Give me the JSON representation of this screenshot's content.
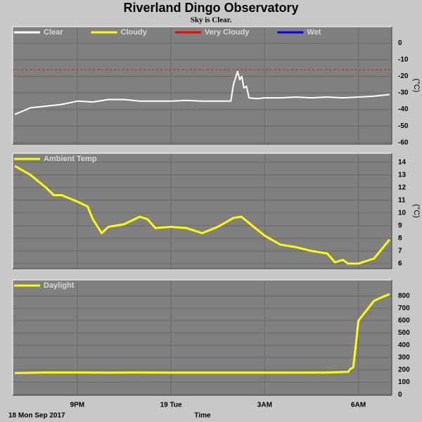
{
  "title": "Riverland Dingo Observatory",
  "subtitle": "Sky is Clear.",
  "xlabel": "Time",
  "date_label": "18 Mon Sep 2017",
  "xlim": [
    "2017-09-18T18:56",
    "2017-09-19T07:04"
  ],
  "xticks": [
    {
      "value": "2017-09-18T21:00",
      "label": "9PM"
    },
    {
      "value": "2017-09-19T00:00",
      "label": "19 Tue"
    },
    {
      "value": "2017-09-19T03:00",
      "label": "3AM"
    },
    {
      "value": "2017-09-19T06:00",
      "label": "6AM"
    }
  ],
  "chart_data": [
    {
      "type": "line",
      "ylabel": "(°C)",
      "ylim": [
        -61,
        10
      ],
      "yticks": [
        0,
        -10,
        -20,
        -30,
        -40,
        -50,
        -60
      ],
      "grid": true,
      "threshold": {
        "value": -16,
        "color": "#ff0000",
        "style": "dashed"
      },
      "series": [
        {
          "name": "Clear",
          "color": "#ffffff",
          "x": [
            "2017-09-18T19:00",
            "2017-09-18T19:30",
            "2017-09-18T20:00",
            "2017-09-18T20:30",
            "2017-09-18T21:00",
            "2017-09-18T21:30",
            "2017-09-18T22:00",
            "2017-09-18T22:30",
            "2017-09-18T23:00",
            "2017-09-18T23:30",
            "2017-09-19T00:00",
            "2017-09-19T00:30",
            "2017-09-19T01:00",
            "2017-09-19T01:30",
            "2017-09-19T01:55",
            "2017-09-19T02:00",
            "2017-09-19T02:08",
            "2017-09-19T02:12",
            "2017-09-19T02:16",
            "2017-09-19T02:20",
            "2017-09-19T02:25",
            "2017-09-19T02:30",
            "2017-09-19T02:45",
            "2017-09-19T03:00",
            "2017-09-19T03:30",
            "2017-09-19T04:00",
            "2017-09-19T04:30",
            "2017-09-19T05:00",
            "2017-09-19T05:30",
            "2017-09-19T06:00",
            "2017-09-19T06:30",
            "2017-09-19T07:00"
          ],
          "values": [
            -43,
            -39,
            -38,
            -37,
            -35,
            -35.5,
            -34,
            -34,
            -35,
            -35,
            -35,
            -34.5,
            -35,
            -35,
            -35,
            -25,
            -17,
            -22,
            -20,
            -27,
            -26,
            -33,
            -33.5,
            -33,
            -33,
            -32.5,
            -33,
            -32.5,
            -33,
            -32.5,
            -32,
            -31
          ]
        },
        {
          "name": "Cloudy",
          "color": "#ffff00"
        },
        {
          "name": "Very Cloudy",
          "color": "#ff0000"
        },
        {
          "name": "Wet",
          "color": "#0000ff"
        }
      ]
    },
    {
      "type": "line",
      "ylabel": "(°C)",
      "ylim": [
        5.6,
        14.7
      ],
      "yticks": [
        14,
        13,
        12,
        11,
        10,
        9,
        8,
        7,
        6
      ],
      "grid": true,
      "series": [
        {
          "name": "Ambient Temp",
          "color": "#ffff00",
          "x": [
            "2017-09-18T19:00",
            "2017-09-18T19:30",
            "2017-09-18T20:00",
            "2017-09-18T20:15",
            "2017-09-18T20:30",
            "2017-09-18T21:00",
            "2017-09-18T21:20",
            "2017-09-18T21:30",
            "2017-09-18T21:47",
            "2017-09-18T22:00",
            "2017-09-18T22:30",
            "2017-09-18T23:00",
            "2017-09-18T23:15",
            "2017-09-18T23:30",
            "2017-09-19T00:00",
            "2017-09-19T00:30",
            "2017-09-19T01:00",
            "2017-09-19T01:30",
            "2017-09-19T02:00",
            "2017-09-19T02:15",
            "2017-09-19T02:30",
            "2017-09-19T03:00",
            "2017-09-19T03:30",
            "2017-09-19T04:00",
            "2017-09-19T04:30",
            "2017-09-19T05:00",
            "2017-09-19T05:15",
            "2017-09-19T05:30",
            "2017-09-19T05:40",
            "2017-09-19T06:00",
            "2017-09-19T06:30",
            "2017-09-19T07:00"
          ],
          "values": [
            13.7,
            13.0,
            12.0,
            11.4,
            11.4,
            10.9,
            10.5,
            9.5,
            8.4,
            8.9,
            9.1,
            9.7,
            9.5,
            8.8,
            8.9,
            8.8,
            8.4,
            8.9,
            9.6,
            9.7,
            9.2,
            8.2,
            7.5,
            7.3,
            7.0,
            6.8,
            6.1,
            6.3,
            6.0,
            6.0,
            6.4,
            7.9
          ]
        }
      ]
    },
    {
      "type": "line",
      "ylim": [
        -5,
        930
      ],
      "yticks": [
        0,
        100,
        200,
        300,
        400,
        500,
        600,
        700,
        800
      ],
      "grid": true,
      "show_xticks": true,
      "series": [
        {
          "name": "Daylight",
          "color": "#ffff00",
          "x": [
            "2017-09-18T19:00",
            "2017-09-18T20:00",
            "2017-09-18T21:00",
            "2017-09-18T22:00",
            "2017-09-18T23:00",
            "2017-09-19T00:00",
            "2017-09-19T01:00",
            "2017-09-19T02:00",
            "2017-09-19T03:00",
            "2017-09-19T04:00",
            "2017-09-19T05:00",
            "2017-09-19T05:40",
            "2017-09-19T05:45",
            "2017-09-19T05:50",
            "2017-09-19T05:55",
            "2017-09-19T06:00",
            "2017-09-19T06:15",
            "2017-09-19T06:30",
            "2017-09-19T06:45",
            "2017-09-19T07:00"
          ],
          "values": [
            175,
            180,
            180,
            178,
            180,
            178,
            178,
            178,
            178,
            178,
            180,
            185,
            210,
            220,
            400,
            600,
            680,
            760,
            790,
            815
          ]
        }
      ]
    }
  ]
}
